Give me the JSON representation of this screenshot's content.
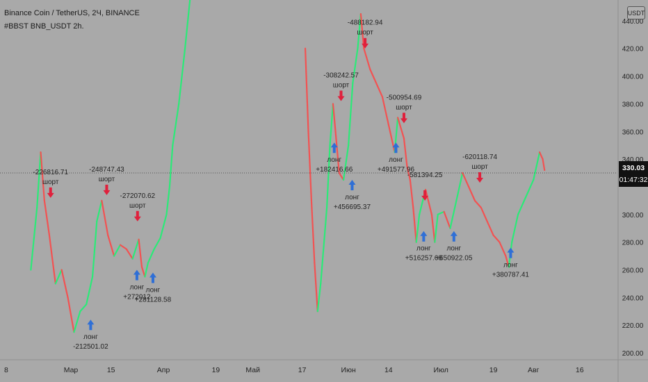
{
  "header": {
    "title": "Binance Coin / TetherUS, 2Ч, BINANCE",
    "subtitle": "#BBST BNB_USDT 2h.",
    "currency_badge": "USDT"
  },
  "last_price": {
    "price": "330.03",
    "countdown": "01:47:32",
    "value": 330.03
  },
  "colors": {
    "background": "#a9a9a9",
    "up": "#2bea78",
    "down": "#f25252",
    "long_arrow": "#2f6fd6",
    "short_arrow": "#e0203c",
    "last_price_line": "#555555"
  },
  "chart_data": {
    "type": "line",
    "ylim": [
      195,
      455
    ],
    "x_range": [
      0,
      100
    ],
    "y_ticks": [
      "440.00",
      "420.00",
      "400.00",
      "380.00",
      "360.00",
      "340.00",
      "300.00",
      "280.00",
      "260.00",
      "240.00",
      "220.00",
      "200.00"
    ],
    "x_ticks": [
      {
        "label": "8",
        "x": 1
      },
      {
        "label": "Мар",
        "x": 11.5
      },
      {
        "label": "15",
        "x": 18
      },
      {
        "label": "Апр",
        "x": 26.5
      },
      {
        "label": "19",
        "x": 35
      },
      {
        "label": "Май",
        "x": 41
      },
      {
        "label": "17",
        "x": 49
      },
      {
        "label": "Июн",
        "x": 56.5
      },
      {
        "label": "14",
        "x": 63
      },
      {
        "label": "Июл",
        "x": 71.5
      },
      {
        "label": "19",
        "x": 80
      },
      {
        "label": "Авг",
        "x": 86.5
      },
      {
        "label": "16",
        "x": 94
      }
    ],
    "series": [
      {
        "points": [
          [
            5,
            260
          ],
          [
            6,
            305
          ],
          [
            6.6,
            345
          ],
          [
            7.2,
            310
          ],
          [
            8,
            285
          ],
          [
            9,
            250
          ],
          [
            10,
            260
          ],
          [
            11,
            240
          ],
          [
            12,
            215
          ],
          [
            13,
            230
          ],
          [
            14,
            235
          ],
          [
            15,
            255
          ],
          [
            15.7,
            295
          ],
          [
            16.5,
            310
          ],
          [
            17.5,
            285
          ],
          [
            18.5,
            270
          ],
          [
            19.5,
            278
          ],
          [
            20.5,
            275
          ],
          [
            21.5,
            268
          ],
          [
            22.5,
            282
          ],
          [
            23,
            262
          ],
          [
            23.5,
            255
          ],
          [
            24,
            265
          ],
          [
            25,
            275
          ],
          [
            26,
            283
          ],
          [
            27,
            300
          ],
          [
            27.5,
            320
          ],
          [
            28,
            350
          ],
          [
            29,
            380
          ],
          [
            30,
            420
          ],
          [
            30.8,
            455
          ]
        ]
      },
      {
        "points": [
          [
            49.5,
            420
          ],
          [
            50,
            360
          ],
          [
            50.5,
            310
          ],
          [
            51,
            265
          ],
          [
            51.5,
            230
          ],
          [
            52,
            250
          ],
          [
            53,
            305
          ],
          [
            53.5,
            350
          ],
          [
            54,
            380
          ],
          [
            55,
            330
          ],
          [
            55.7,
            325
          ],
          [
            56.5,
            350
          ],
          [
            57.2,
            395
          ],
          [
            58,
            420
          ],
          [
            58.5,
            445
          ],
          [
            59,
            420
          ],
          [
            60,
            405
          ],
          [
            61,
            395
          ],
          [
            62,
            385
          ],
          [
            63,
            365
          ],
          [
            64,
            345
          ],
          [
            64.5,
            370
          ],
          [
            65.5,
            355
          ],
          [
            66,
            335
          ],
          [
            66.5,
            325
          ],
          [
            67,
            305
          ],
          [
            67.5,
            280
          ],
          [
            68,
            300
          ],
          [
            69,
            318
          ],
          [
            70,
            300
          ],
          [
            70.5,
            280
          ],
          [
            71,
            300
          ],
          [
            72,
            302
          ],
          [
            73,
            290
          ],
          [
            74,
            310
          ],
          [
            75,
            330
          ],
          [
            76,
            320
          ],
          [
            77,
            310
          ],
          [
            78,
            305
          ],
          [
            79,
            295
          ],
          [
            80,
            285
          ],
          [
            81,
            280
          ],
          [
            82,
            270
          ],
          [
            82.5,
            262
          ],
          [
            83,
            280
          ],
          [
            84,
            300
          ],
          [
            85,
            310
          ],
          [
            86,
            320
          ],
          [
            86.5,
            325
          ],
          [
            87,
            335
          ],
          [
            87.5,
            345
          ],
          [
            88,
            340
          ],
          [
            88.3,
            332
          ]
        ]
      }
    ],
    "signals": [
      {
        "kind": "short",
        "x": 8.2,
        "y": 312,
        "value": "-226816.71",
        "label": "шорт",
        "side": "above"
      },
      {
        "kind": "long",
        "x": 14.7,
        "y": 224,
        "value": "-212501.02",
        "label": "лонг",
        "side": "below"
      },
      {
        "kind": "short",
        "x": 17.3,
        "y": 314,
        "value": "-248747.43",
        "label": "шорт",
        "side": "above"
      },
      {
        "kind": "long",
        "x": 22.2,
        "y": 260,
        "value": "+272012",
        "label": "лонг",
        "side": "below"
      },
      {
        "kind": "short",
        "x": 22.3,
        "y": 295,
        "value": "-272070.62",
        "label": "шорт",
        "side": "above"
      },
      {
        "kind": "long",
        "x": 24.8,
        "y": 258,
        "value": "+281128.58",
        "label": "лонг",
        "side": "below"
      },
      {
        "kind": "short",
        "x": 55.3,
        "y": 382,
        "value": "-308242.57",
        "label": "шорт",
        "side": "above"
      },
      {
        "kind": "long",
        "x": 54.2,
        "y": 352,
        "value": "+182416.66",
        "label": "лонг",
        "side": "below"
      },
      {
        "kind": "long",
        "x": 57.1,
        "y": 325,
        "value": "+456695.37",
        "label": "лонг",
        "side": "below"
      },
      {
        "kind": "short",
        "x": 59.2,
        "y": 420,
        "value": "-488182.94",
        "label": "шорт",
        "side": "above"
      },
      {
        "kind": "long",
        "x": 64.2,
        "y": 352,
        "value": "+491577.96",
        "label": "лонг",
        "side": "below"
      },
      {
        "kind": "short",
        "x": 65.5,
        "y": 366,
        "value": "-500954.69",
        "label": "шорт",
        "side": "above"
      },
      {
        "kind": "short",
        "x": 68.9,
        "y": 310,
        "value": "-581394.25",
        "label": "",
        "side": "above"
      },
      {
        "kind": "long",
        "x": 68.7,
        "y": 288,
        "value": "+516257.68",
        "label": "лонг",
        "side": "below"
      },
      {
        "kind": "long",
        "x": 73.6,
        "y": 288,
        "value": "+650922.05",
        "label": "лонг",
        "side": "below"
      },
      {
        "kind": "short",
        "x": 77.8,
        "y": 323,
        "value": "-620118.74",
        "label": "шорт",
        "side": "above"
      },
      {
        "kind": "long",
        "x": 82.8,
        "y": 276,
        "value": "+380787.41",
        "label": "лонг",
        "side": "below"
      }
    ]
  }
}
